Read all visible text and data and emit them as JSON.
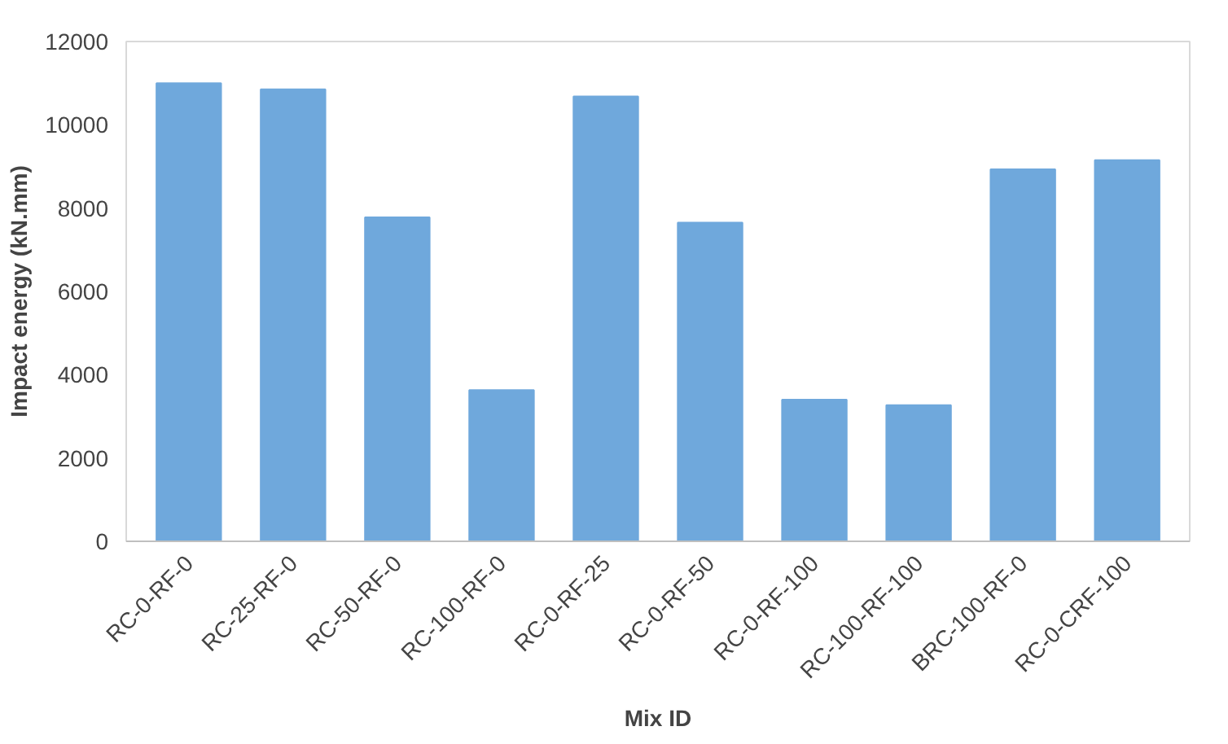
{
  "chart_data": {
    "type": "bar",
    "xlabel": "Mix ID",
    "ylabel": "Impact energy (kN.mm)",
    "categories": [
      "RC-0-RF-0",
      "RC-25-RF-0",
      "RC-50-RF-0",
      "RC-100-RF-0",
      "RC-0-RF-25",
      "RC-0-RF-50",
      "RC-0-RF-100",
      "RC-100-RF-100",
      "BRC-100-RF-0",
      "RC-0-CRF-100"
    ],
    "values": [
      11000,
      10850,
      7780,
      3630,
      10680,
      7650,
      3400,
      3270,
      8930,
      9150
    ],
    "color": "#6fa8dc",
    "ylim": [
      0,
      12000
    ],
    "yticks": [
      0,
      2000,
      4000,
      6000,
      8000,
      10000,
      12000
    ],
    "grid": false
  }
}
